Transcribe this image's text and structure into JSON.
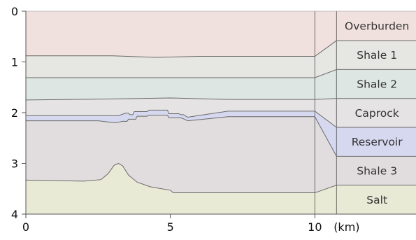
{
  "diagram": {
    "x_axis": {
      "range": [
        0,
        13.5
      ],
      "ticks": [
        0,
        5,
        10
      ],
      "tick_labels": [
        "0",
        "5",
        "10"
      ],
      "unit_label": "(km)"
    },
    "y_axis": {
      "range": [
        0,
        4
      ],
      "inverted": true,
      "ticks": [
        0,
        1,
        2,
        3,
        4
      ],
      "tick_labels": [
        "0",
        "1",
        "2",
        "3",
        "4"
      ]
    },
    "section_end_x": 10,
    "legend_column_x": 10.75,
    "layers": [
      {
        "name": "Overburden",
        "color": "#f1e1de",
        "legend_top": 0,
        "legend_bottom": 0.58
      },
      {
        "name": "Shale 1",
        "color": "#e6e6e2",
        "legend_top": 0.58,
        "legend_bottom": 1.15
      },
      {
        "name": "Shale 2",
        "color": "#dde6e2",
        "legend_top": 1.15,
        "legend_bottom": 1.72
      },
      {
        "name": "Caprock",
        "color": "#e6e3e5",
        "legend_top": 1.72,
        "legend_bottom": 2.29
      },
      {
        "name": "Reservoir",
        "color": "#d6d8f0",
        "legend_top": 2.29,
        "legend_bottom": 2.86
      },
      {
        "name": "Shale 3",
        "color": "#e1dcde",
        "legend_top": 2.86,
        "legend_bottom": 3.43
      },
      {
        "name": "Salt",
        "color": "#e9ead6",
        "legend_top": 3.43,
        "legend_bottom": 4.0
      }
    ],
    "horizons": [
      {
        "name": "top-shale-1",
        "points": [
          [
            0,
            0.88
          ],
          [
            3,
            0.88
          ],
          [
            4.5,
            0.91
          ],
          [
            6,
            0.89
          ],
          [
            10,
            0.89
          ]
        ]
      },
      {
        "name": "top-shale-2",
        "points": [
          [
            0,
            1.31
          ],
          [
            10,
            1.31
          ]
        ]
      },
      {
        "name": "top-caprock",
        "points": [
          [
            0,
            1.75
          ],
          [
            3,
            1.73
          ],
          [
            5,
            1.71
          ],
          [
            7,
            1.74
          ],
          [
            10,
            1.74
          ]
        ]
      },
      {
        "name": "top-reservoir",
        "points": [
          [
            0,
            2.06
          ],
          [
            2.5,
            2.06
          ],
          [
            3.2,
            2.06
          ],
          [
            3.45,
            2.01
          ],
          [
            3.55,
            2.01
          ],
          [
            3.6,
            2.04
          ],
          [
            3.7,
            2.04
          ],
          [
            3.75,
            1.98
          ],
          [
            4.2,
            1.98
          ],
          [
            4.25,
            1.95
          ],
          [
            4.9,
            1.95
          ],
          [
            4.95,
            2.02
          ],
          [
            5.3,
            2.02
          ],
          [
            5.35,
            2.04
          ],
          [
            5.45,
            2.04
          ],
          [
            5.6,
            2.09
          ],
          [
            6.3,
            2.03
          ],
          [
            7.0,
            1.97
          ],
          [
            10,
            1.97
          ]
        ]
      },
      {
        "name": "top-shale-3",
        "points": [
          [
            0,
            2.16
          ],
          [
            2.5,
            2.16
          ],
          [
            3.1,
            2.2
          ],
          [
            3.35,
            2.17
          ],
          [
            3.5,
            2.17
          ],
          [
            3.55,
            2.13
          ],
          [
            3.8,
            2.13
          ],
          [
            3.85,
            2.07
          ],
          [
            4.2,
            2.07
          ],
          [
            4.25,
            2.05
          ],
          [
            4.9,
            2.05
          ],
          [
            4.95,
            2.1
          ],
          [
            5.35,
            2.1
          ],
          [
            5.45,
            2.12
          ],
          [
            5.6,
            2.16
          ],
          [
            6.3,
            2.12
          ],
          [
            7.0,
            2.08
          ],
          [
            10,
            2.08
          ]
        ]
      },
      {
        "name": "top-salt",
        "points": [
          [
            0,
            3.33
          ],
          [
            2,
            3.35
          ],
          [
            2.6,
            3.32
          ],
          [
            2.85,
            3.2
          ],
          [
            3.05,
            3.04
          ],
          [
            3.2,
            3.0
          ],
          [
            3.35,
            3.05
          ],
          [
            3.55,
            3.23
          ],
          [
            3.85,
            3.37
          ],
          [
            4.3,
            3.46
          ],
          [
            5.0,
            3.53
          ],
          [
            5.1,
            3.58
          ],
          [
            10,
            3.58
          ]
        ]
      }
    ],
    "colors": {
      "boundary_line": "#6a6a6a",
      "frame": "#555555"
    }
  }
}
